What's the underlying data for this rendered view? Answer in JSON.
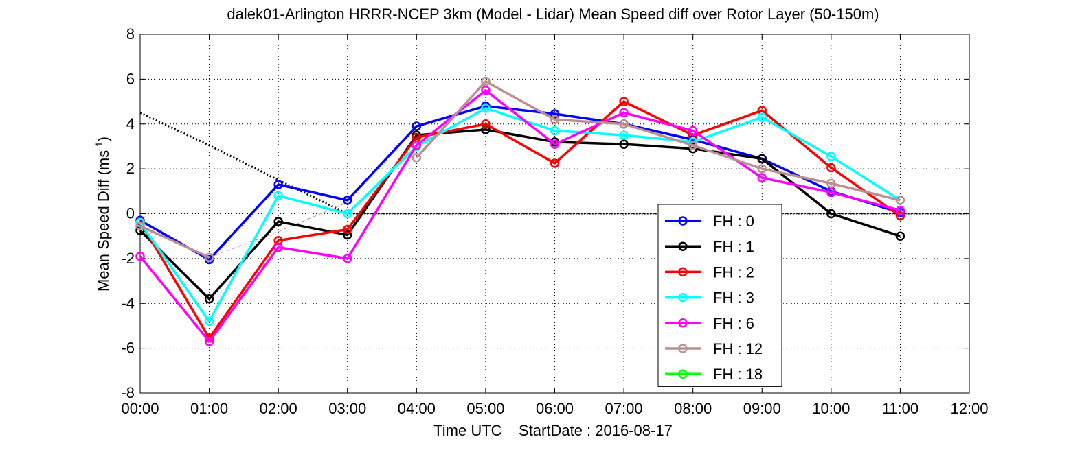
{
  "chart_data": {
    "type": "line",
    "title": "dalek01-Arlington HRRR-NCEP 3km (Model - Lidar) Mean Speed diff over Rotor Layer (50-150m)",
    "ylabel_main": "Mean Speed Diff (ms",
    "ylabel_sup": "-1",
    "ylabel_close": ")",
    "xlabel": "Time UTC    StartDate : 2016-08-17",
    "xticks": [
      "00:00",
      "01:00",
      "02:00",
      "03:00",
      "04:00",
      "05:00",
      "06:00",
      "07:00",
      "08:00",
      "09:00",
      "10:00",
      "11:00",
      "12:00"
    ],
    "yticks": [
      "-8",
      "-6",
      "-4",
      "-2",
      "0",
      "2",
      "4",
      "6",
      "8"
    ],
    "xlim": [
      0,
      12
    ],
    "ylim": [
      -8,
      8
    ],
    "grid": true,
    "legend_position": "lower-right",
    "series": [
      {
        "name": "FH : 0",
        "color": "#0000ff",
        "x": [
          0,
          1,
          2,
          3,
          4,
          5,
          6,
          7,
          8,
          9,
          10,
          11
        ],
        "values": [
          -0.3,
          -2.05,
          1.3,
          0.6,
          3.9,
          4.8,
          4.45,
          4.0,
          3.3,
          2.45,
          1.0,
          0.05
        ]
      },
      {
        "name": "FH : 1",
        "color": "#000000",
        "x": [
          0,
          1,
          2,
          3,
          4,
          5,
          6,
          7,
          8,
          9,
          10,
          11
        ],
        "values": [
          -0.75,
          -3.8,
          -0.35,
          -0.95,
          3.5,
          3.75,
          3.2,
          3.1,
          2.9,
          2.45,
          0.0,
          -1.0
        ]
      },
      {
        "name": "FH : 2",
        "color": "#ff0000",
        "x": [
          0,
          1,
          2,
          3,
          4,
          5,
          6,
          7,
          8,
          9,
          10,
          11
        ],
        "values": [
          -0.35,
          -5.55,
          -1.2,
          -0.7,
          3.4,
          4.0,
          2.25,
          5.0,
          3.5,
          4.6,
          2.05,
          -0.1
        ]
      },
      {
        "name": "FH : 3",
        "color": "#00ffff",
        "x": [
          0,
          1,
          2,
          3,
          4,
          5,
          6,
          7,
          8,
          9,
          10,
          11
        ],
        "values": [
          -0.4,
          -4.8,
          0.8,
          0.0,
          3.0,
          4.7,
          3.7,
          3.5,
          3.2,
          4.3,
          2.55,
          0.6
        ]
      },
      {
        "name": "FH : 6",
        "color": "#ff00ff",
        "x": [
          0,
          1,
          2,
          3,
          4,
          5,
          6,
          7,
          8,
          9,
          10,
          11
        ],
        "values": [
          -1.9,
          -5.7,
          -1.5,
          -2.0,
          3.05,
          5.5,
          3.1,
          4.5,
          3.7,
          1.6,
          0.95,
          0.15
        ]
      },
      {
        "name": "FH : 12",
        "color": "#bc8f8f",
        "x": [
          0,
          1,
          2,
          3,
          4,
          5,
          6,
          7,
          8,
          9,
          10,
          11
        ],
        "values": [
          -0.55,
          -1.95,
          null,
          null,
          2.5,
          5.9,
          4.2,
          4.0,
          3.05,
          2.0,
          1.35,
          0.6
        ]
      },
      {
        "name": "FH : 18",
        "color": "#00ff00",
        "x": [],
        "values": []
      }
    ],
    "extra_lines": [
      {
        "style": "dotted",
        "color": "#000000",
        "width": 3,
        "x": [
          0,
          1,
          2,
          3
        ],
        "values": [
          4.5,
          3.05,
          1.5,
          0.0
        ]
      },
      {
        "style": "dashed-thin",
        "color": "#bc8f8f",
        "width": 1,
        "x": [
          1,
          2,
          3
        ],
        "values": [
          -1.95,
          -0.8,
          0.5
        ]
      }
    ],
    "zero_line": {
      "style": "dotted",
      "color": "#000000",
      "x": [
        3,
        12
      ],
      "value": 0
    }
  }
}
